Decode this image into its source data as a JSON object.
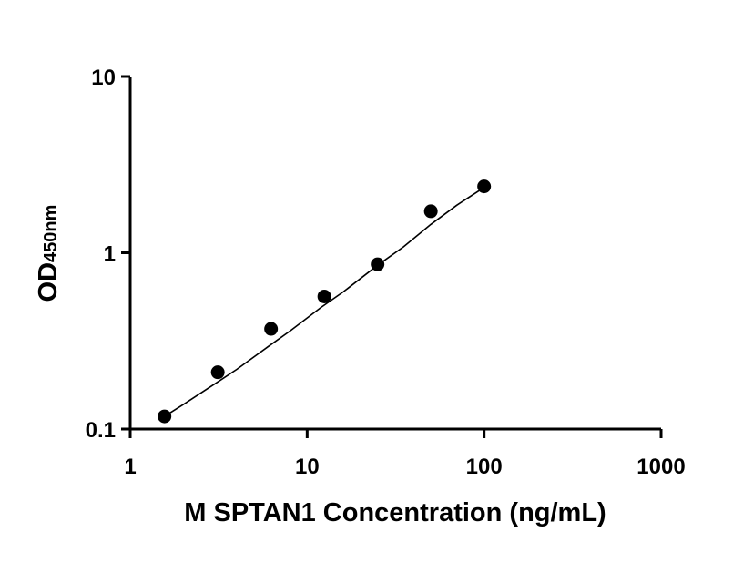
{
  "chart_data": {
    "type": "scatter",
    "x_scale": "log",
    "y_scale": "log",
    "xlim": [
      1,
      1000
    ],
    "ylim": [
      0.1,
      10
    ],
    "x_ticks": [
      1,
      10,
      100,
      1000
    ],
    "x_tick_labels": [
      "1",
      "10",
      "100",
      "1000"
    ],
    "y_ticks": [
      0.1,
      1,
      10
    ],
    "y_tick_labels": [
      "0.1",
      "1",
      "10"
    ],
    "xlabel": "M SPTAN1 Concentration (ng/mL)",
    "ylabel": {
      "main": "OD",
      "subscript": "450nm"
    },
    "grid": false,
    "series": [
      {
        "type": "scatter",
        "x": [
          1.5625,
          3.125,
          6.25,
          12.5,
          25,
          50,
          100
        ],
        "y": [
          0.118,
          0.21,
          0.37,
          0.565,
          0.86,
          1.72,
          2.38
        ]
      },
      {
        "type": "line",
        "description_of_shape": "sigmoidal fit curve",
        "x": [
          1.5625,
          2,
          3,
          4,
          6,
          8,
          12,
          16,
          25,
          35,
          50,
          70,
          100
        ],
        "y": [
          0.118,
          0.138,
          0.18,
          0.218,
          0.293,
          0.36,
          0.49,
          0.6,
          0.85,
          1.08,
          1.45,
          1.86,
          2.35
        ]
      }
    ],
    "colors": {
      "marks": "#000000",
      "background": "#ffffff"
    }
  }
}
